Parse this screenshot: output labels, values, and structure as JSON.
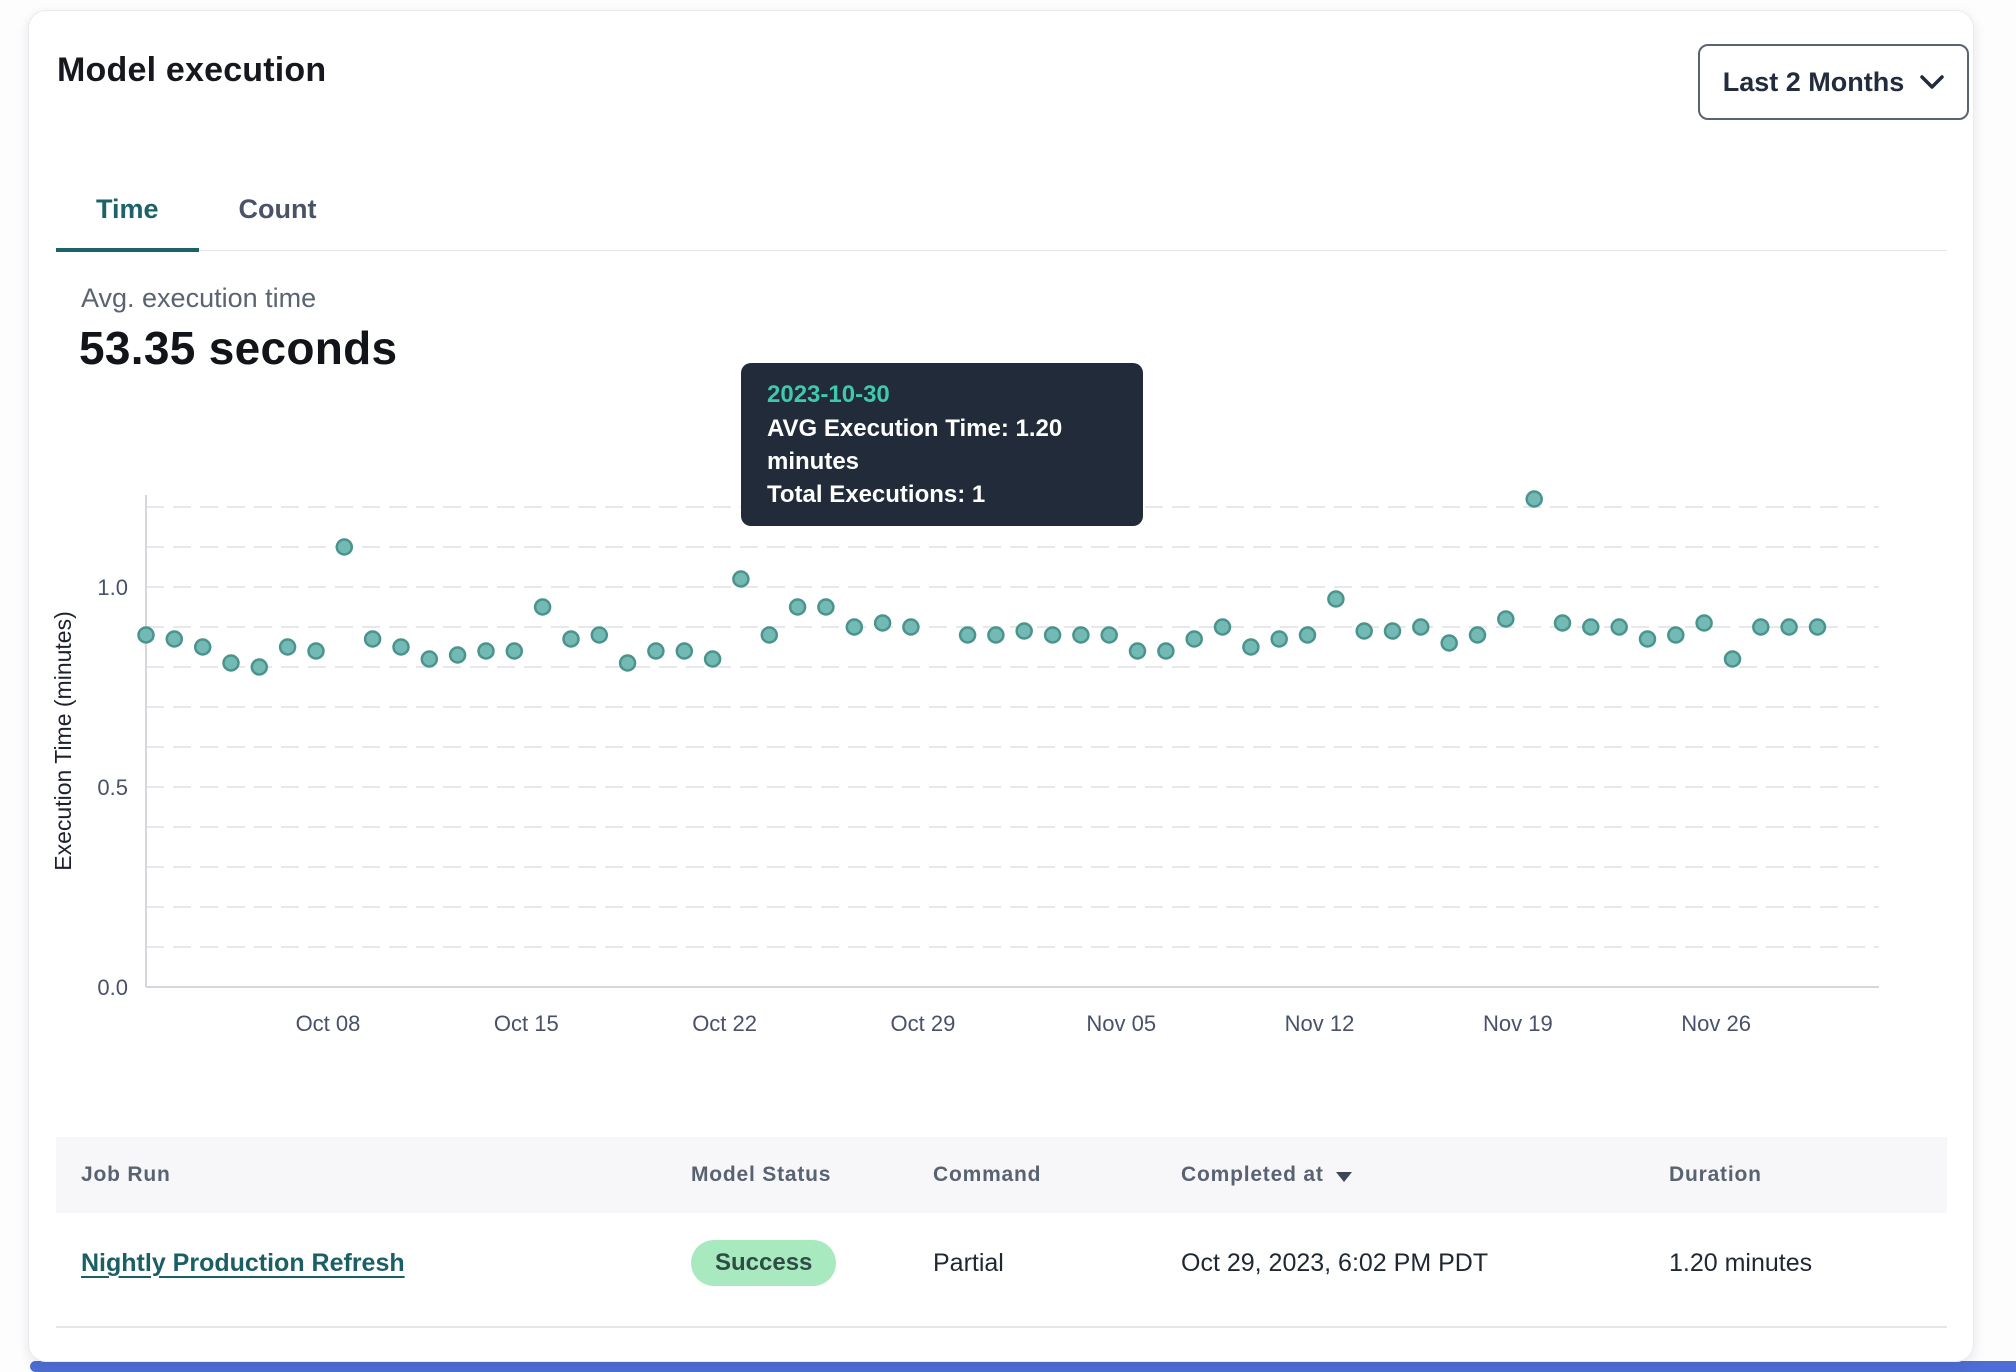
{
  "header": {
    "title": "Model execution",
    "range_selector": {
      "label": "Last 2 Months"
    }
  },
  "tabs": {
    "items": [
      {
        "label": "Time"
      },
      {
        "label": "Count"
      }
    ],
    "active": "Time"
  },
  "metric": {
    "label": "Avg. execution time",
    "value": "53.35 seconds"
  },
  "tooltip": {
    "date": "2023-10-30",
    "line1": "AVG Execution Time: 1.20 minutes",
    "line2": "Total Executions: 1"
  },
  "chart_data": {
    "type": "scatter",
    "title": "",
    "xlabel": "",
    "ylabel": "Execution Time (minutes)",
    "ylim": [
      0,
      1.25
    ],
    "y_ticks": [
      0.0,
      0.5,
      1.0
    ],
    "grid_interval": 0.1,
    "grid": true,
    "legend_position": "none",
    "x_tick_labels": [
      "Oct 08",
      "Oct 15",
      "Oct 22",
      "Oct 29",
      "Nov 05",
      "Nov 12",
      "Nov 19",
      "Nov 26"
    ],
    "x_tick_indices": [
      6,
      13,
      20,
      27,
      34,
      41,
      48,
      55
    ],
    "highlighted_index": 28,
    "highlighted_date": "2023-10-30",
    "series": [
      {
        "name": "AVG Execution Time (minutes)",
        "dates": [
          "2023-10-02",
          "2023-10-03",
          "2023-10-04",
          "2023-10-05",
          "2023-10-06",
          "2023-10-07",
          "2023-10-08",
          "2023-10-09",
          "2023-10-10",
          "2023-10-11",
          "2023-10-12",
          "2023-10-13",
          "2023-10-14",
          "2023-10-15",
          "2023-10-16",
          "2023-10-17",
          "2023-10-18",
          "2023-10-19",
          "2023-10-20",
          "2023-10-21",
          "2023-10-22",
          "2023-10-23",
          "2023-10-24",
          "2023-10-25",
          "2023-10-26",
          "2023-10-27",
          "2023-10-28",
          "2023-10-29",
          "2023-10-30",
          "2023-10-31",
          "2023-11-01",
          "2023-11-02",
          "2023-11-03",
          "2023-11-04",
          "2023-11-05",
          "2023-11-06",
          "2023-11-07",
          "2023-11-08",
          "2023-11-09",
          "2023-11-10",
          "2023-11-11",
          "2023-11-12",
          "2023-11-13",
          "2023-11-14",
          "2023-11-15",
          "2023-11-16",
          "2023-11-17",
          "2023-11-18",
          "2023-11-19",
          "2023-11-20",
          "2023-11-21",
          "2023-11-22",
          "2023-11-23",
          "2023-11-24",
          "2023-11-25",
          "2023-11-26",
          "2023-11-27",
          "2023-11-28",
          "2023-11-29",
          "2023-11-30"
        ],
        "values": [
          0.88,
          0.87,
          0.85,
          0.81,
          0.8,
          0.85,
          0.84,
          1.1,
          0.87,
          0.85,
          0.82,
          0.83,
          0.84,
          0.84,
          0.95,
          0.87,
          0.88,
          0.81,
          0.84,
          0.84,
          0.82,
          1.02,
          0.88,
          0.95,
          0.95,
          0.9,
          0.91,
          0.9,
          1.2,
          0.88,
          0.88,
          0.89,
          0.88,
          0.88,
          0.88,
          0.84,
          0.84,
          0.87,
          0.9,
          0.85,
          0.87,
          0.88,
          0.97,
          0.89,
          0.89,
          0.9,
          0.86,
          0.88,
          0.92,
          1.22,
          0.91,
          0.9,
          0.9,
          0.87,
          0.88,
          0.91,
          0.82,
          0.9,
          0.9,
          0.9
        ]
      }
    ]
  },
  "table": {
    "columns": [
      "Job Run",
      "Model Status",
      "Command",
      "Completed at",
      "Duration"
    ],
    "sort_column": "Completed at",
    "sort_direction": "desc",
    "rows": [
      {
        "job_run": "Nightly Production Refresh",
        "model_status": "Success",
        "command": "Partial",
        "completed_at": "Oct 29, 2023, 6:02 PM PDT",
        "duration": "1.20 minutes"
      }
    ]
  },
  "colors": {
    "accent_teal": "#1d6169",
    "point_fill": "#73b9b4",
    "point_stroke": "#4b948e",
    "point_active": "#4a8a88",
    "point_active_stroke": "#3f7b79",
    "gridline": "#e7e7ec",
    "axis": "#d6d6dc",
    "tick_label": "#49516a",
    "axis_title": "#1c212b",
    "tooltip_bg": "#212b3a",
    "tooltip_date": "#3fc9ac",
    "badge_bg": "#a9e9c0",
    "badge_text": "#2e4e44",
    "bottom_bar": "#4d6ed6"
  }
}
